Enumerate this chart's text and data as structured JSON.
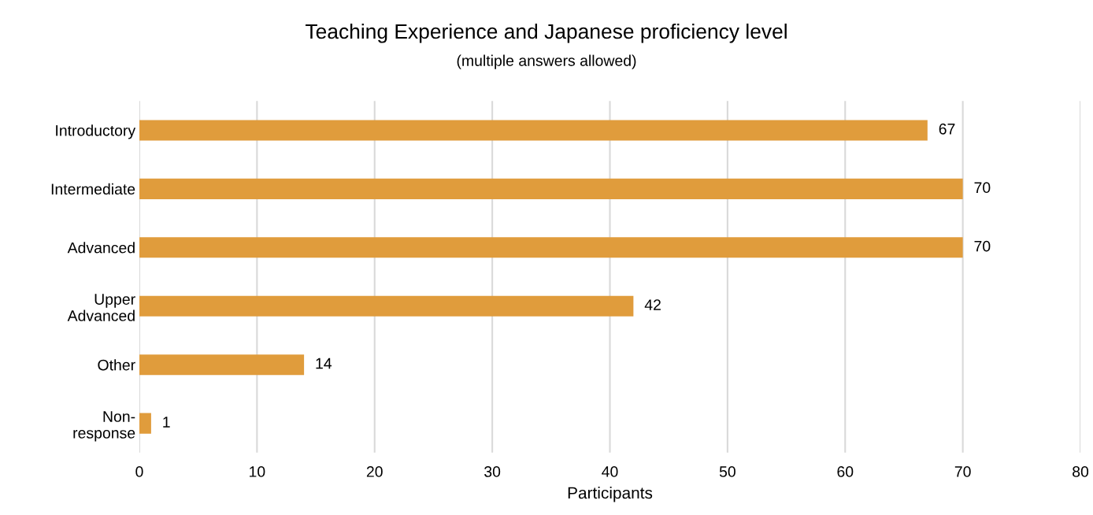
{
  "chart_data": {
    "type": "bar",
    "orientation": "horizontal",
    "title": "Teaching Experience and Japanese proficiency level",
    "subtitle": "(multiple answers allowed)",
    "xlabel": "Participants",
    "categories": [
      "Introductory",
      "Intermediate",
      "Advanced",
      "Upper\nAdvanced",
      "Other",
      "Non-\nresponse"
    ],
    "values": [
      67,
      70,
      70,
      42,
      14,
      1
    ],
    "color": "#e09c3c",
    "xlim": [
      0,
      80
    ],
    "xticks": [
      0,
      10,
      20,
      30,
      40,
      50,
      60,
      70,
      80
    ],
    "grid": "x",
    "data_labels": true
  }
}
